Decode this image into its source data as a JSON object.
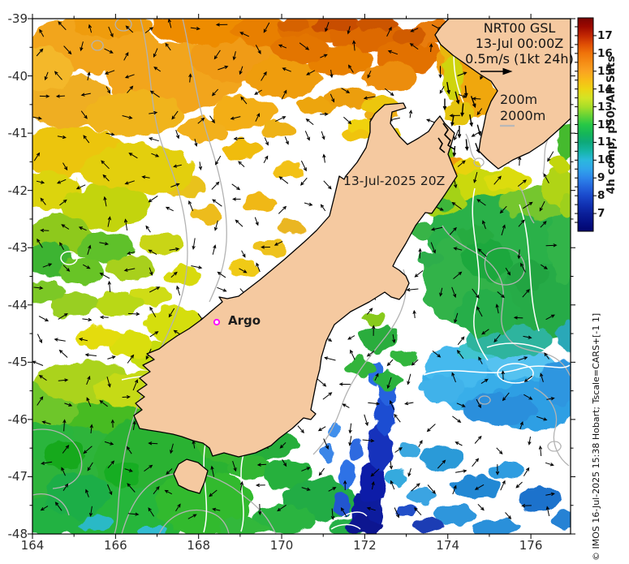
{
  "figure": {
    "annotation": {
      "lines": [
        "NRT00 GSL",
        "13-Jul 00:00Z",
        "0.5m/s (1kt 24h)"
      ]
    },
    "depth_legend": {
      "d200": "200m",
      "d2000": "2000m"
    },
    "date_label": "13-Jul-2025 20Z",
    "argo": {
      "label": "Argo"
    },
    "axes": {
      "x_ticks": [
        "164",
        "166",
        "168",
        "170",
        "172",
        "174",
        "176"
      ],
      "y_ticks": [
        "-39",
        "-40",
        "-41",
        "-42",
        "-43",
        "-44",
        "-45",
        "-46",
        "-47",
        "-48"
      ]
    },
    "colorbar": {
      "label": "4h comp, p50, All Sats",
      "ticks": [
        "17",
        "16",
        "15",
        "14",
        "13",
        "12",
        "11",
        "10",
        "9",
        "8",
        "7"
      ],
      "value_min": 6,
      "value_max": 18
    },
    "attribution": "© IMOS 16-Jul-2025 15:38 Hobart; Tscale=CARS+[-1 1]",
    "colors": {
      "land": "#f5c9a0",
      "coast": "#000000",
      "bathy_contour": "#b3b3b3",
      "sst_contour": "#ffffff",
      "argo_marker": "#ff00ff",
      "vector": "#000000",
      "colorbar_top": "#7a0403",
      "colorbar_bottom": "#02066f"
    }
  }
}
